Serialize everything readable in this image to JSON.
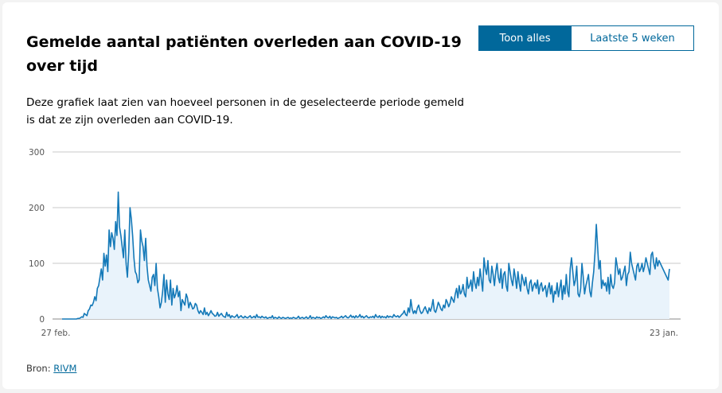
{
  "header": {
    "title": "Gemelde aantal patiënten overleden aan COVID-19 over tijd",
    "description": "Deze grafiek laat zien van hoeveel personen in de geselecteerde periode gemeld is dat ze zijn overleden aan COVID-19."
  },
  "toggle": {
    "all_label": "Toon alles",
    "last5_label": "Laatste 5 weken"
  },
  "source": {
    "label": "Bron:",
    "link_text": "RIVM"
  },
  "colors": {
    "line": "#1479b8",
    "area": "#e9f3fb",
    "accent": "#01689b",
    "grid": "#c8c8c8"
  },
  "chart_data": {
    "type": "area",
    "title": "",
    "xlabel": "",
    "ylabel": "",
    "ylim": [
      0,
      300
    ],
    "yticks": [
      0,
      100,
      200,
      300
    ],
    "x_start_label": "27 feb.",
    "x_end_label": "23 jan.",
    "grid": true,
    "series": [
      {
        "values": [
          0,
          0,
          0,
          0,
          0,
          0,
          0,
          0,
          0,
          0,
          0,
          0,
          1,
          1,
          2,
          4,
          3,
          10,
          8,
          6,
          15,
          18,
          25,
          24,
          30,
          40,
          33,
          55,
          60,
          75,
          90,
          70,
          118,
          95,
          115,
          85,
          160,
          130,
          155,
          145,
          125,
          175,
          150,
          228,
          165,
          150,
          130,
          110,
          160,
          100,
          75,
          120,
          200,
          180,
          150,
          110,
          85,
          80,
          65,
          70,
          160,
          140,
          130,
          105,
          145,
          95,
          70,
          60,
          50,
          75,
          80,
          60,
          100,
          55,
          40,
          20,
          30,
          50,
          80,
          30,
          70,
          45,
          35,
          70,
          25,
          55,
          38,
          45,
          60,
          40,
          50,
          15,
          35,
          30,
          25,
          45,
          38,
          20,
          30,
          25,
          18,
          20,
          28,
          25,
          15,
          10,
          15,
          12,
          8,
          20,
          8,
          12,
          6,
          10,
          15,
          10,
          8,
          5,
          6,
          12,
          5,
          8,
          10,
          6,
          4,
          3,
          12,
          5,
          8,
          2,
          6,
          4,
          3,
          5,
          8,
          2,
          4,
          6,
          3,
          2,
          5,
          3,
          2,
          4,
          6,
          2,
          3,
          5,
          2,
          8,
          3,
          4,
          2,
          5,
          3,
          2,
          4,
          1,
          2,
          3,
          2,
          6,
          1,
          3,
          2,
          1,
          4,
          2,
          1,
          3,
          2,
          1,
          2,
          3,
          1,
          2,
          1,
          3,
          2,
          1,
          2,
          5,
          1,
          2,
          3,
          1,
          2,
          4,
          1,
          2,
          6,
          1,
          3,
          2,
          1,
          4,
          2,
          3,
          1,
          2,
          4,
          2,
          6,
          3,
          2,
          5,
          1,
          4,
          3,
          2,
          3,
          1,
          2,
          3,
          5,
          2,
          4,
          6,
          3,
          2,
          4,
          7,
          3,
          5,
          2,
          6,
          3,
          4,
          8,
          3,
          5,
          2,
          4,
          6,
          3,
          2,
          4,
          3,
          5,
          2,
          8,
          4,
          3,
          6,
          2,
          5,
          3,
          4,
          2,
          6,
          3,
          5,
          4,
          3,
          8,
          5,
          4,
          6,
          3,
          5,
          8,
          10,
          15,
          8,
          6,
          20,
          12,
          35,
          18,
          10,
          15,
          10,
          20,
          25,
          15,
          10,
          12,
          18,
          22,
          15,
          10,
          20,
          14,
          22,
          35,
          15,
          12,
          20,
          30,
          25,
          18,
          15,
          25,
          20,
          35,
          30,
          22,
          28,
          40,
          35,
          30,
          45,
          55,
          38,
          60,
          45,
          50,
          62,
          45,
          40,
          75,
          55,
          60,
          70,
          50,
          85,
          65,
          55,
          75,
          60,
          90,
          70,
          50,
          110,
          90,
          80,
          105,
          70,
          65,
          95,
          80,
          60,
          85,
          100,
          75,
          65,
          90,
          55,
          80,
          85,
          60,
          50,
          100,
          85,
          70,
          60,
          90,
          75,
          55,
          85,
          65,
          50,
          80,
          70,
          60,
          75,
          55,
          45,
          65,
          70,
          50,
          60,
          65,
          55,
          70,
          45,
          60,
          65,
          50,
          55,
          60,
          40,
          55,
          65,
          45,
          60,
          30,
          50,
          45,
          65,
          40,
          55,
          70,
          35,
          60,
          45,
          80,
          50,
          40,
          90,
          110,
          85,
          60,
          70,
          95,
          45,
          40,
          55,
          100,
          75,
          45,
          60,
          70,
          80,
          50,
          40,
          65,
          85,
          120,
          170,
          130,
          90,
          105,
          55,
          70,
          60,
          65,
          50,
          75,
          45,
          80,
          60,
          55,
          65,
          110,
          95,
          80,
          90,
          70,
          75,
          85,
          95,
          60,
          80,
          85,
          120,
          100,
          90,
          80,
          70,
          95,
          100,
          85,
          90,
          100,
          85,
          95,
          110,
          100,
          90,
          80,
          115,
          120,
          100,
          90,
          110,
          95,
          105,
          100,
          95,
          90,
          85,
          80,
          75,
          70,
          90
        ]
      }
    ]
  }
}
